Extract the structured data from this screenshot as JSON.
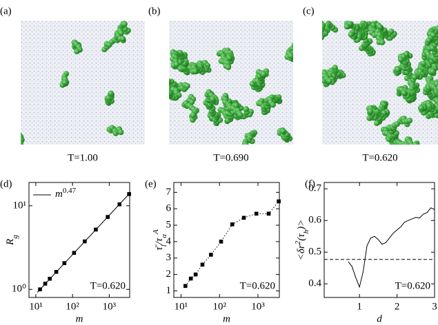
{
  "panels": [
    {
      "label": "(a)",
      "caption": "T=1.00"
    },
    {
      "label": "(b)",
      "caption": "T=0.690"
    },
    {
      "label": "(c)",
      "caption": "T=0.620"
    }
  ],
  "chart_data": [
    {
      "type": "scatter",
      "panel": "(d)",
      "xlabel": "m",
      "ylabel": [
        "R",
        "g"
      ],
      "log_x": true,
      "log_y": true,
      "xlim": [
        6.5,
        3600
      ],
      "ylim": [
        0.8,
        19
      ],
      "xticks": [
        {
          "value": 10,
          "label": "10¹"
        },
        {
          "value": 100,
          "label": "10²"
        },
        {
          "value": 1000,
          "label": "10³"
        }
      ],
      "yticks": [
        {
          "value": 1,
          "label": "10⁰"
        },
        {
          "value": 10,
          "label": "10¹"
        }
      ],
      "x": [
        13,
        18,
        24,
        36,
        60,
        110,
        215,
        430,
        910,
        1900,
        3470
      ],
      "series": [
        {
          "color": "#000000",
          "values": [
            1.0,
            1.17,
            1.34,
            1.62,
            2.06,
            2.73,
            3.75,
            5.19,
            7.35,
            10.4,
            13.8
          ]
        }
      ],
      "fit": {
        "name": [
          "m",
          "0.47"
        ],
        "color": "#000000",
        "x": [
          11,
          3500
        ],
        "values": [
          0.92,
          13.9
        ]
      },
      "legend": "top-left",
      "annotation": "T=0.620"
    },
    {
      "type": "scatter",
      "panel": "(e)",
      "xlabel": "m",
      "ylabel": [
        "τ̄",
        "l",
        "/τ",
        "α",
        "A"
      ],
      "log_x": true,
      "log_y": false,
      "line_style": "dotted",
      "xlim": [
        6.5,
        3600
      ],
      "ylim": [
        0.6,
        7.6
      ],
      "xticks": [
        {
          "value": 10,
          "label": "10¹"
        },
        {
          "value": 100,
          "label": "10²"
        },
        {
          "value": 1000,
          "label": "10³"
        }
      ],
      "yticks": [
        1,
        2,
        3,
        4,
        5,
        6,
        7
      ],
      "x": [
        13,
        18,
        24,
        36,
        60,
        110,
        215,
        430,
        910,
        1900,
        3470
      ],
      "series": [
        {
          "color": "#000000",
          "values": [
            1.3,
            1.75,
            2.0,
            2.6,
            3.2,
            4.0,
            5.05,
            5.45,
            5.7,
            5.7,
            6.45
          ]
        }
      ],
      "annotation": "T=0.620"
    },
    {
      "type": "line",
      "panel": "(f)",
      "xlabel": "d",
      "ylabel": [
        "<δr",
        "2",
        "(τ",
        "h",
        ")>"
      ],
      "log_x": false,
      "log_y": false,
      "xlim": [
        0.06,
        3.0
      ],
      "ylim": [
        0.357,
        0.72
      ],
      "xticks": [
        1,
        2,
        3
      ],
      "yticks": [
        0.4,
        0.5,
        0.6,
        0.7
      ],
      "x": [
        0.7,
        0.8,
        0.9,
        1.0,
        1.1,
        1.2,
        1.3,
        1.4,
        1.5,
        1.6,
        1.7,
        1.8,
        1.9,
        2.0,
        2.1,
        2.2,
        2.3,
        2.4,
        2.5,
        2.6,
        2.7,
        2.8,
        2.9,
        3.0
      ],
      "series": [
        {
          "color": "#000000",
          "values": [
            0.47,
            0.455,
            0.42,
            0.39,
            0.44,
            0.52,
            0.545,
            0.55,
            0.54,
            0.525,
            0.53,
            0.545,
            0.56,
            0.57,
            0.58,
            0.595,
            0.6,
            0.605,
            0.61,
            0.608,
            0.62,
            0.625,
            0.64,
            0.635
          ]
        }
      ],
      "hline": 0.477,
      "hline_style": "dashed",
      "annotation": "T=0.620"
    }
  ]
}
